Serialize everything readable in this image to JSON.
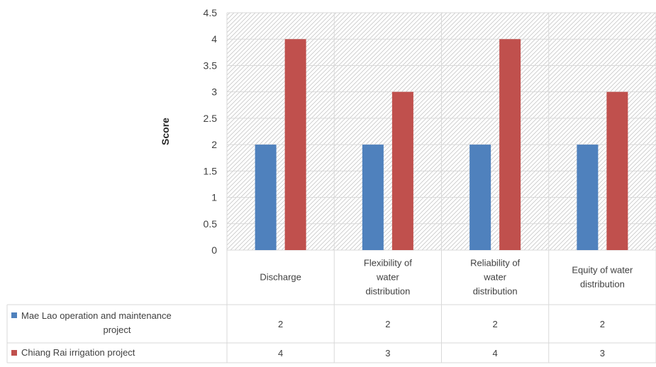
{
  "chart_data": {
    "type": "bar",
    "title": "",
    "ylabel": "Score",
    "xlabel": "",
    "ylim": [
      0,
      4.5
    ],
    "yticks": [
      "0",
      "0.5",
      "1",
      "1.5",
      "2",
      "2.5",
      "3",
      "3.5",
      "4",
      "4.5"
    ],
    "categories": [
      [
        "Discharge"
      ],
      [
        "Flexibility of",
        "water",
        "distribution"
      ],
      [
        "Reliability of",
        "water",
        "distribution"
      ],
      [
        "Equity of water",
        "distribution"
      ]
    ],
    "series": [
      {
        "name": [
          "Mae Lao operation and maintenance",
          "project"
        ],
        "color": "#4f81bd",
        "values": [
          2,
          2,
          2,
          2
        ],
        "labels": [
          "2",
          "2",
          "2",
          "2"
        ]
      },
      {
        "name": [
          "Chiang Rai irrigation project"
        ],
        "color": "#c0504d",
        "values": [
          4,
          3,
          4,
          3
        ],
        "labels": [
          "4",
          "3",
          "4",
          "3"
        ]
      }
    ],
    "grid": true,
    "legend": "data-table"
  }
}
